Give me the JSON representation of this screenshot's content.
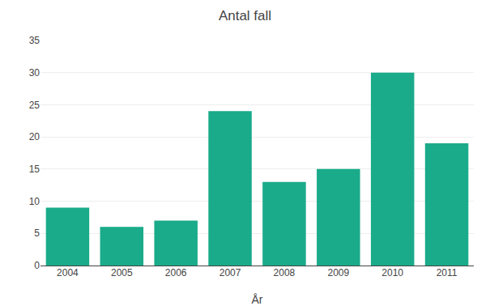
{
  "chart_data": {
    "type": "bar",
    "title": "Antal fall",
    "xlabel": "År",
    "categories": [
      "2004",
      "2005",
      "2006",
      "2007",
      "2008",
      "2009",
      "2010",
      "2011"
    ],
    "values": [
      9,
      6,
      7,
      24,
      13,
      15,
      30,
      19
    ],
    "color": "#1aab8a",
    "ylim": [
      0,
      35
    ],
    "yticks": [
      0,
      5,
      10,
      15,
      20,
      25,
      30,
      35
    ],
    "grid": true
  }
}
